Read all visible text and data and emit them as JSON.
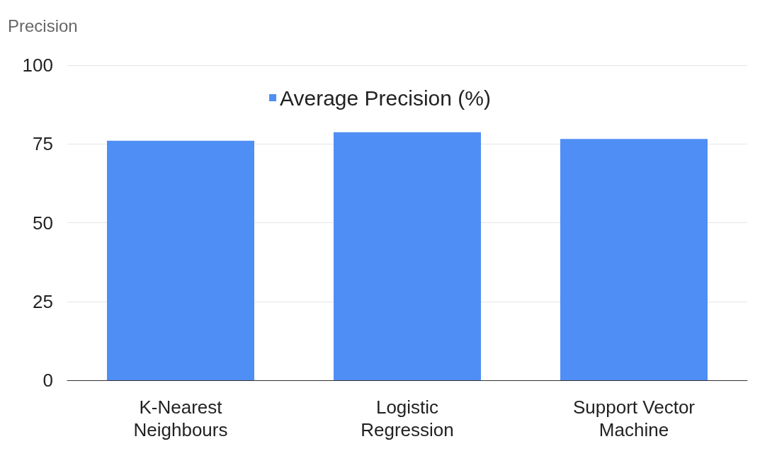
{
  "chart_data": {
    "type": "bar",
    "ylabel": "Precision",
    "categories": [
      "K-Nearest\nNeighbours",
      "Logistic\nRegression",
      "Support Vector\nMachine"
    ],
    "series": [
      {
        "name": "Average Precision (%)",
        "color": "#4f8ef5",
        "values": [
          76,
          78.7,
          76.6
        ]
      }
    ],
    "ylim": [
      0,
      100
    ],
    "yticks": [
      0,
      25,
      50,
      75,
      100
    ],
    "grid": "y",
    "legend": "top"
  }
}
